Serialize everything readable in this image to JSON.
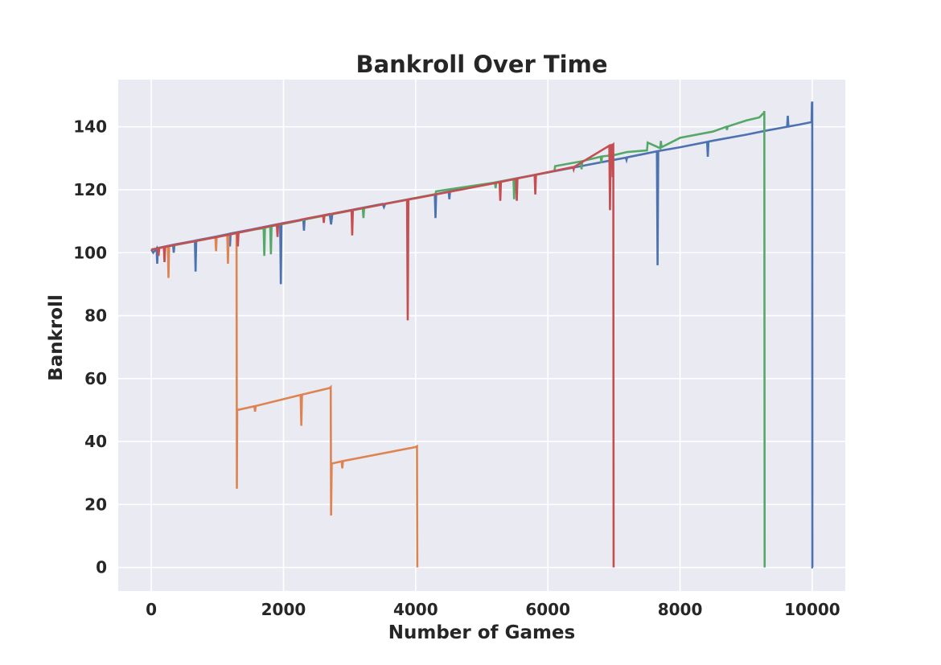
{
  "chart_data": {
    "type": "line",
    "title": "Bankroll Over Time",
    "xlabel": "Number of Games",
    "ylabel": "Bankroll",
    "xlim": [
      -500,
      10500
    ],
    "ylim": [
      -7.5,
      155
    ],
    "xticks": [
      0,
      2000,
      4000,
      6000,
      8000,
      10000
    ],
    "yticks": [
      0,
      20,
      40,
      60,
      80,
      100,
      120,
      140
    ],
    "grid": true,
    "background": "#eaeaf2",
    "colors": {
      "blue": "#4c72b0",
      "orange": "#dd8452",
      "green": "#55a868",
      "red": "#c44e52"
    },
    "series": [
      {
        "color": "#4c72b0",
        "points": [
          [
            0,
            101
          ],
          [
            30,
            100
          ],
          [
            80,
            101.4
          ],
          [
            90,
            96.5
          ],
          [
            100,
            101.5
          ],
          [
            330,
            102.5
          ],
          [
            340,
            100
          ],
          [
            350,
            102.6
          ],
          [
            660,
            103.8
          ],
          [
            670,
            94
          ],
          [
            680,
            103.9
          ],
          [
            1000,
            105.2
          ],
          [
            1180,
            106
          ],
          [
            1190,
            102
          ],
          [
            1200,
            106.1
          ],
          [
            1500,
            107.3
          ],
          [
            1950,
            109.2
          ],
          [
            1960,
            90
          ],
          [
            1970,
            109.3
          ],
          [
            2300,
            110.6
          ],
          [
            2310,
            107
          ],
          [
            2320,
            110.7
          ],
          [
            2700,
            112.3
          ],
          [
            2720,
            109
          ],
          [
            2740,
            112.4
          ],
          [
            3500,
            115.5
          ],
          [
            3520,
            114.5
          ],
          [
            3540,
            115.6
          ],
          [
            4290,
            118.5
          ],
          [
            4300,
            111
          ],
          [
            4310,
            118.6
          ],
          [
            4500,
            119.4
          ],
          [
            4510,
            117
          ],
          [
            4520,
            119.5
          ],
          [
            5000,
            121.5
          ],
          [
            6000,
            125.5
          ],
          [
            6500,
            127.5
          ],
          [
            7000,
            129.5
          ],
          [
            7180,
            130.2
          ],
          [
            7190,
            129.5
          ],
          [
            7200,
            130.3
          ],
          [
            7650,
            132.2
          ],
          [
            7660,
            96
          ],
          [
            7670,
            132.3
          ],
          [
            8000,
            133.5
          ],
          [
            8410,
            135.2
          ],
          [
            8420,
            130.5
          ],
          [
            8430,
            135.3
          ],
          [
            8500,
            135.6
          ],
          [
            9000,
            137.5
          ],
          [
            9280,
            138.7
          ],
          [
            9620,
            140
          ],
          [
            9630,
            143.5
          ],
          [
            9640,
            140.1
          ],
          [
            9800,
            140.7
          ],
          [
            9990,
            141.5
          ],
          [
            9995,
            147.5
          ],
          [
            10000,
            148
          ],
          [
            10002,
            0
          ],
          [
            10010,
            0
          ]
        ]
      },
      {
        "color": "#dd8452",
        "points": [
          [
            0,
            101
          ],
          [
            250,
            102
          ],
          [
            260,
            92
          ],
          [
            270,
            102.1
          ],
          [
            970,
            104.9
          ],
          [
            980,
            100.5
          ],
          [
            990,
            105
          ],
          [
            1150,
            105.6
          ],
          [
            1160,
            96.5
          ],
          [
            1170,
            105.7
          ],
          [
            1290,
            106.2
          ],
          [
            1295,
            25
          ],
          [
            1300,
            50
          ],
          [
            1560,
            51.2
          ],
          [
            1570,
            49.5
          ],
          [
            1580,
            51.3
          ],
          [
            2260,
            54.8
          ],
          [
            2270,
            45
          ],
          [
            2280,
            54.9
          ],
          [
            2700,
            57
          ],
          [
            2715,
            57.3
          ],
          [
            2720,
            16.5
          ],
          [
            2730,
            33
          ],
          [
            2880,
            33.7
          ],
          [
            2890,
            31.5
          ],
          [
            2900,
            33.8
          ],
          [
            3990,
            38.2
          ],
          [
            4020,
            38.5
          ],
          [
            4025,
            0
          ]
        ]
      },
      {
        "color": "#55a868",
        "points": [
          [
            0,
            101
          ],
          [
            500,
            103
          ],
          [
            1600,
            107.5
          ],
          [
            1700,
            107.8
          ],
          [
            1710,
            99
          ],
          [
            1720,
            108
          ],
          [
            1800,
            108.3
          ],
          [
            1810,
            99.5
          ],
          [
            1820,
            108.4
          ],
          [
            2500,
            111.3
          ],
          [
            3200,
            114.1
          ],
          [
            3210,
            111
          ],
          [
            3220,
            114.2
          ],
          [
            4000,
            117.4
          ],
          [
            4300,
            118.6
          ],
          [
            4310,
            119.5
          ],
          [
            5200,
            122.3
          ],
          [
            5210,
            120.5
          ],
          [
            5220,
            122.4
          ],
          [
            5480,
            123.4
          ],
          [
            5490,
            117
          ],
          [
            5500,
            123.5
          ],
          [
            6000,
            125.5
          ],
          [
            6100,
            126
          ],
          [
            6110,
            127.5
          ],
          [
            6500,
            129
          ],
          [
            6510,
            126.5
          ],
          [
            6520,
            129.1
          ],
          [
            6800,
            130.5
          ],
          [
            6810,
            128.5
          ],
          [
            6820,
            130.6
          ],
          [
            7000,
            131
          ],
          [
            7200,
            132
          ],
          [
            7500,
            132.5
          ],
          [
            7510,
            135
          ],
          [
            7700,
            133.2
          ],
          [
            7710,
            135.5
          ],
          [
            7720,
            133.5
          ],
          [
            8000,
            136.5
          ],
          [
            8500,
            138.5
          ],
          [
            8700,
            140
          ],
          [
            8710,
            139
          ],
          [
            8720,
            140.1
          ],
          [
            9000,
            142
          ],
          [
            9200,
            143
          ],
          [
            9270,
            144.5
          ],
          [
            9275,
            145
          ],
          [
            9280,
            0
          ]
        ]
      },
      {
        "color": "#c44e52",
        "points": [
          [
            0,
            101
          ],
          [
            100,
            101.4
          ],
          [
            110,
            99
          ],
          [
            120,
            101.5
          ],
          [
            190,
            101.8
          ],
          [
            200,
            97
          ],
          [
            210,
            101.9
          ],
          [
            1000,
            105
          ],
          [
            1300,
            106.3
          ],
          [
            1310,
            102
          ],
          [
            1320,
            106.4
          ],
          [
            1900,
            108.9
          ],
          [
            1910,
            105
          ],
          [
            1920,
            109
          ],
          [
            2250,
            110.3
          ],
          [
            2260,
            110.5
          ],
          [
            2600,
            111.8
          ],
          [
            2610,
            109.5
          ],
          [
            2620,
            111.9
          ],
          [
            3030,
            113.5
          ],
          [
            3040,
            105.5
          ],
          [
            3050,
            113.6
          ],
          [
            3870,
            116.8
          ],
          [
            3880,
            78.5
          ],
          [
            3890,
            116.9
          ],
          [
            4000,
            117.3
          ],
          [
            5270,
            122.4
          ],
          [
            5280,
            116.5
          ],
          [
            5290,
            122.5
          ],
          [
            5520,
            123.5
          ],
          [
            5530,
            116.5
          ],
          [
            5540,
            123.6
          ],
          [
            5800,
            124.7
          ],
          [
            5810,
            118.5
          ],
          [
            5820,
            124.8
          ],
          [
            6380,
            127.2
          ],
          [
            6390,
            126.5
          ],
          [
            6400,
            127.3
          ],
          [
            6930,
            134
          ],
          [
            6940,
            113.5
          ],
          [
            6950,
            134.1
          ],
          [
            6975,
            134.3
          ],
          [
            6980,
            124
          ],
          [
            6985,
            134.3
          ],
          [
            6990,
            134.4
          ],
          [
            6995,
            0
          ]
        ]
      }
    ]
  }
}
